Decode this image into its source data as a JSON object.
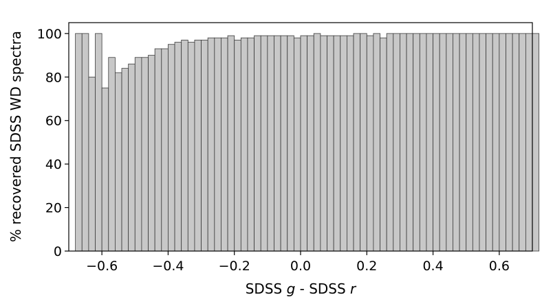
{
  "chart_data": {
    "type": "bar",
    "title": "",
    "xlabel": "SDSS g - SDSS r",
    "xlabel_parts": {
      "prefix": "SDSS ",
      "g": "g",
      "middle": " - SDSS ",
      "r": "r"
    },
    "ylabel": "% recovered SDSS WD spectra",
    "xlim": [
      -0.7,
      0.7
    ],
    "ylim": [
      0,
      105
    ],
    "xticks": [
      -0.6,
      -0.4,
      -0.2,
      0.0,
      0.2,
      0.4,
      0.6
    ],
    "xtick_labels": [
      "−0.6",
      "−0.4",
      "−0.2",
      "0.0",
      "0.2",
      "0.4",
      "0.6"
    ],
    "yticks": [
      0,
      20,
      40,
      60,
      80,
      100
    ],
    "ytick_labels": [
      "0",
      "20",
      "40",
      "60",
      "80",
      "100"
    ],
    "bin_start": -0.68,
    "bin_width": 0.02,
    "values": [
      100,
      100,
      80,
      100,
      75,
      89,
      82,
      84,
      86,
      89,
      89,
      90,
      93,
      93,
      95,
      96,
      97,
      96,
      97,
      97,
      98,
      98,
      98,
      99,
      97,
      98,
      98,
      99,
      99,
      99,
      99,
      99,
      99,
      98,
      99,
      99,
      100,
      99,
      99,
      99,
      99,
      99,
      100,
      100,
      99,
      100,
      98,
      100,
      100,
      100,
      100,
      100,
      100,
      100,
      100,
      100,
      100,
      100,
      100,
      100,
      100,
      100,
      100,
      100,
      100,
      100,
      100,
      100,
      100,
      100
    ],
    "grid": false,
    "colors": {
      "bar_fill": "#c8c8c8",
      "bar_edge": "#3a3a3a"
    }
  }
}
